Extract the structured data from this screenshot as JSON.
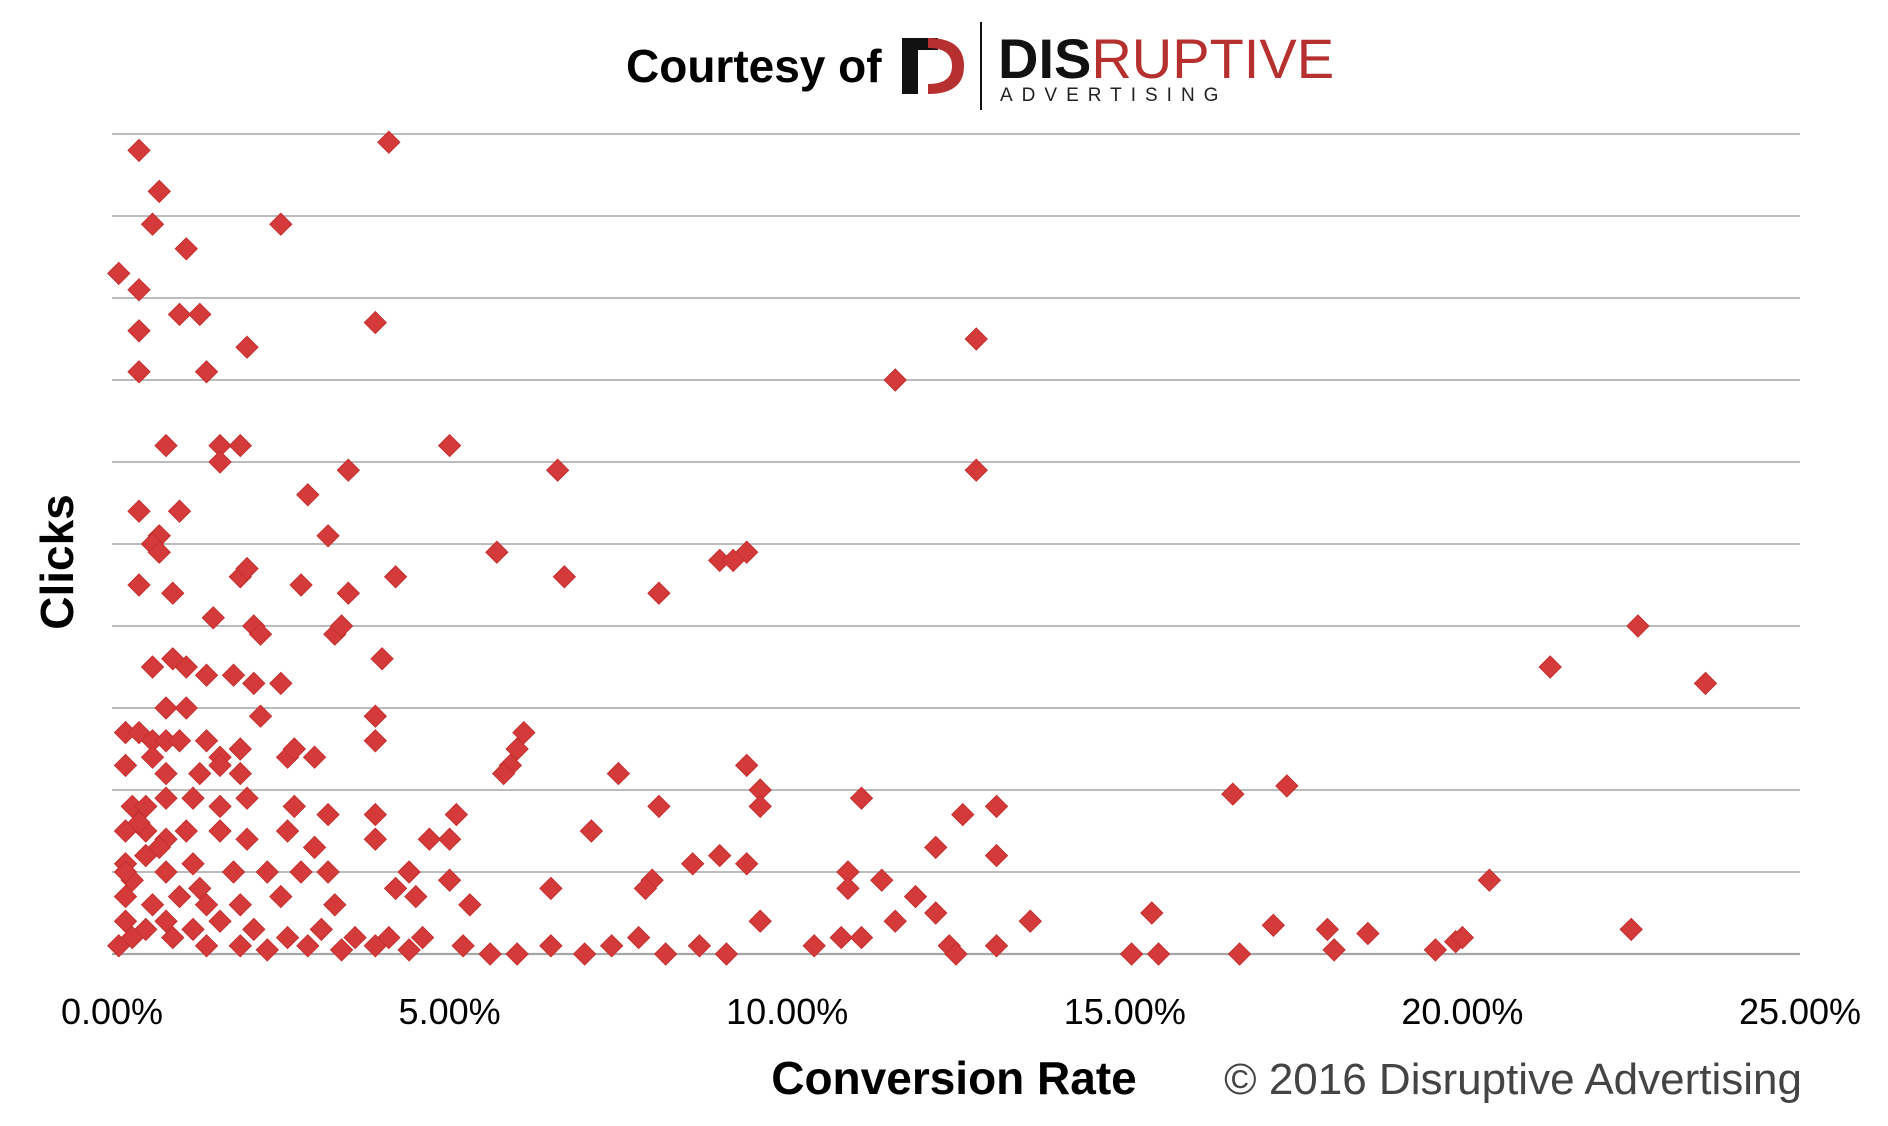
{
  "header": {
    "courtesy_text": "Courtesy of",
    "brand_part1": "DIS",
    "brand_part2": "RUPTIVE",
    "brand_sub": "ADVERTISING"
  },
  "copyright": "© 2016 Disruptive Advertising",
  "colors": {
    "marker": "#d43a3a",
    "grid": "#a6a6a6",
    "brand_red": "#b5302f",
    "brand_dark": "#111111"
  },
  "chart_data": {
    "type": "scatter",
    "title": "",
    "xlabel": "Conversion Rate",
    "ylabel": "Clicks",
    "xlim": [
      0,
      25
    ],
    "x_ticks": [
      "0.00%",
      "5.00%",
      "10.00%",
      "15.00%",
      "20.00%",
      "25.00%"
    ],
    "y_tick_labels_visible": false,
    "y_gridlines": 10,
    "grid": true,
    "legend": "none",
    "marker": "diamond",
    "y_units": "gridline intervals (1 unit = 1 gridline; y-axis values not printed)",
    "points": [
      [
        0.4,
        9.8
      ],
      [
        0.7,
        9.3
      ],
      [
        0.6,
        8.9
      ],
      [
        1.1,
        8.6
      ],
      [
        0.1,
        8.3
      ],
      [
        0.4,
        8.1
      ],
      [
        0.4,
        7.6
      ],
      [
        0.4,
        7.1
      ],
      [
        1.0,
        7.8
      ],
      [
        1.3,
        7.8
      ],
      [
        2.0,
        7.4
      ],
      [
        1.4,
        7.1
      ],
      [
        2.5,
        8.9
      ],
      [
        4.1,
        9.9
      ],
      [
        3.9,
        7.7
      ],
      [
        0.8,
        6.2
      ],
      [
        1.6,
        6.2
      ],
      [
        1.9,
        6.2
      ],
      [
        1.6,
        6.0
      ],
      [
        3.5,
        5.9
      ],
      [
        5.0,
        6.2
      ],
      [
        6.6,
        5.9
      ],
      [
        0.4,
        5.4
      ],
      [
        1.0,
        5.4
      ],
      [
        0.7,
        5.1
      ],
      [
        0.6,
        5.0
      ],
      [
        2.9,
        5.6
      ],
      [
        3.2,
        5.1
      ],
      [
        0.7,
        4.9
      ],
      [
        0.4,
        4.5
      ],
      [
        0.9,
        4.4
      ],
      [
        1.9,
        4.6
      ],
      [
        2.0,
        4.7
      ],
      [
        2.8,
        4.5
      ],
      [
        3.5,
        4.4
      ],
      [
        4.2,
        4.6
      ],
      [
        1.5,
        4.1
      ],
      [
        2.1,
        4.0
      ],
      [
        2.2,
        3.9
      ],
      [
        3.3,
        3.9
      ],
      [
        3.4,
        4.0
      ],
      [
        5.7,
        4.9
      ],
      [
        6.7,
        4.6
      ],
      [
        8.1,
        4.4
      ],
      [
        9.0,
        4.8
      ],
      [
        9.2,
        4.8
      ],
      [
        9.4,
        4.9
      ],
      [
        0.6,
        3.5
      ],
      [
        0.9,
        3.6
      ],
      [
        1.1,
        3.5
      ],
      [
        1.4,
        3.4
      ],
      [
        1.8,
        3.4
      ],
      [
        2.1,
        3.3
      ],
      [
        2.5,
        3.3
      ],
      [
        4.0,
        3.6
      ],
      [
        0.8,
        3.0
      ],
      [
        1.1,
        3.0
      ],
      [
        2.2,
        2.9
      ],
      [
        3.9,
        2.9
      ],
      [
        3.9,
        2.6
      ],
      [
        0.2,
        2.7
      ],
      [
        0.4,
        2.7
      ],
      [
        0.6,
        2.6
      ],
      [
        0.8,
        2.6
      ],
      [
        1.0,
        2.6
      ],
      [
        1.4,
        2.6
      ],
      [
        1.6,
        2.4
      ],
      [
        1.9,
        2.5
      ],
      [
        2.6,
        2.4
      ],
      [
        2.7,
        2.5
      ],
      [
        3.0,
        2.4
      ],
      [
        0.2,
        2.3
      ],
      [
        0.6,
        2.4
      ],
      [
        0.8,
        2.2
      ],
      [
        1.3,
        2.2
      ],
      [
        1.6,
        2.3
      ],
      [
        1.9,
        2.2
      ],
      [
        6.1,
        2.7
      ],
      [
        6.0,
        2.5
      ],
      [
        5.9,
        2.3
      ],
      [
        5.8,
        2.2
      ],
      [
        7.5,
        2.2
      ],
      [
        9.4,
        2.3
      ],
      [
        9.6,
        2.0
      ],
      [
        9.6,
        1.8
      ],
      [
        0.3,
        1.8
      ],
      [
        0.5,
        1.8
      ],
      [
        0.8,
        1.9
      ],
      [
        1.2,
        1.9
      ],
      [
        1.6,
        1.8
      ],
      [
        2.0,
        1.9
      ],
      [
        2.7,
        1.8
      ],
      [
        3.2,
        1.7
      ],
      [
        3.9,
        1.7
      ],
      [
        5.1,
        1.7
      ],
      [
        8.1,
        1.8
      ],
      [
        11.1,
        1.9
      ],
      [
        12.6,
        1.7
      ],
      [
        13.1,
        1.8
      ],
      [
        16.6,
        1.95
      ],
      [
        17.4,
        2.05
      ],
      [
        0.2,
        1.5
      ],
      [
        0.5,
        1.5
      ],
      [
        0.8,
        1.4
      ],
      [
        1.1,
        1.5
      ],
      [
        1.6,
        1.5
      ],
      [
        2.0,
        1.4
      ],
      [
        2.6,
        1.5
      ],
      [
        3.0,
        1.3
      ],
      [
        3.9,
        1.4
      ],
      [
        4.7,
        1.4
      ],
      [
        5.0,
        1.4
      ],
      [
        7.1,
        1.5
      ],
      [
        8.6,
        1.1
      ],
      [
        9.0,
        1.2
      ],
      [
        9.4,
        1.1
      ],
      [
        12.2,
        1.3
      ],
      [
        13.1,
        1.2
      ],
      [
        0.2,
        1.1
      ],
      [
        0.5,
        1.2
      ],
      [
        0.8,
        1.0
      ],
      [
        1.2,
        1.1
      ],
      [
        1.8,
        1.0
      ],
      [
        2.3,
        1.0
      ],
      [
        2.8,
        1.0
      ],
      [
        3.2,
        1.0
      ],
      [
        4.4,
        1.0
      ],
      [
        5.0,
        0.9
      ],
      [
        6.5,
        0.8
      ],
      [
        8.0,
        0.9
      ],
      [
        7.9,
        0.8
      ],
      [
        10.9,
        1.0
      ],
      [
        10.9,
        0.8
      ],
      [
        11.4,
        0.9
      ],
      [
        11.9,
        0.7
      ],
      [
        20.4,
        0.9
      ],
      [
        0.2,
        0.7
      ],
      [
        0.6,
        0.6
      ],
      [
        1.0,
        0.7
      ],
      [
        1.4,
        0.6
      ],
      [
        1.9,
        0.6
      ],
      [
        2.5,
        0.7
      ],
      [
        3.3,
        0.6
      ],
      [
        4.2,
        0.8
      ],
      [
        4.5,
        0.7
      ],
      [
        5.3,
        0.6
      ],
      [
        0.2,
        0.4
      ],
      [
        0.5,
        0.3
      ],
      [
        0.8,
        0.4
      ],
      [
        1.2,
        0.3
      ],
      [
        1.6,
        0.4
      ],
      [
        2.1,
        0.3
      ],
      [
        2.6,
        0.2
      ],
      [
        3.1,
        0.3
      ],
      [
        3.6,
        0.2
      ],
      [
        4.1,
        0.2
      ],
      [
        4.6,
        0.2
      ],
      [
        5.2,
        0.1
      ],
      [
        5.6,
        0.0
      ],
      [
        6.0,
        0.0
      ],
      [
        6.5,
        0.1
      ],
      [
        7.0,
        0.0
      ],
      [
        7.4,
        0.1
      ],
      [
        7.8,
        0.2
      ],
      [
        8.2,
        0.0
      ],
      [
        8.7,
        0.1
      ],
      [
        9.1,
        0.0
      ],
      [
        9.6,
        0.4
      ],
      [
        10.4,
        0.1
      ],
      [
        10.8,
        0.2
      ],
      [
        11.1,
        0.2
      ],
      [
        11.6,
        0.4
      ],
      [
        12.2,
        0.5
      ],
      [
        12.4,
        0.1
      ],
      [
        12.5,
        0.0
      ],
      [
        13.1,
        0.1
      ],
      [
        13.6,
        0.4
      ],
      [
        15.1,
        0.0
      ],
      [
        15.4,
        0.5
      ],
      [
        15.5,
        0.0
      ],
      [
        16.7,
        0.0
      ],
      [
        17.2,
        0.35
      ],
      [
        18.0,
        0.3
      ],
      [
        18.1,
        0.05
      ],
      [
        18.6,
        0.25
      ],
      [
        19.6,
        0.05
      ],
      [
        19.9,
        0.15
      ],
      [
        20.0,
        0.2
      ],
      [
        21.3,
        3.5
      ],
      [
        22.6,
        4.0
      ],
      [
        23.6,
        3.3
      ],
      [
        22.5,
        0.3
      ],
      [
        0.1,
        0.1
      ],
      [
        0.3,
        0.2
      ],
      [
        0.9,
        0.2
      ],
      [
        1.4,
        0.1
      ],
      [
        1.9,
        0.1
      ],
      [
        2.3,
        0.05
      ],
      [
        2.9,
        0.1
      ],
      [
        3.4,
        0.05
      ],
      [
        3.9,
        0.1
      ],
      [
        4.4,
        0.05
      ],
      [
        0.3,
        0.9
      ],
      [
        0.7,
        1.3
      ],
      [
        1.3,
        0.8
      ],
      [
        0.4,
        1.6
      ],
      [
        0.2,
        1.0
      ],
      [
        11.6,
        7.0
      ],
      [
        12.8,
        7.5
      ],
      [
        12.8,
        5.9
      ]
    ]
  }
}
